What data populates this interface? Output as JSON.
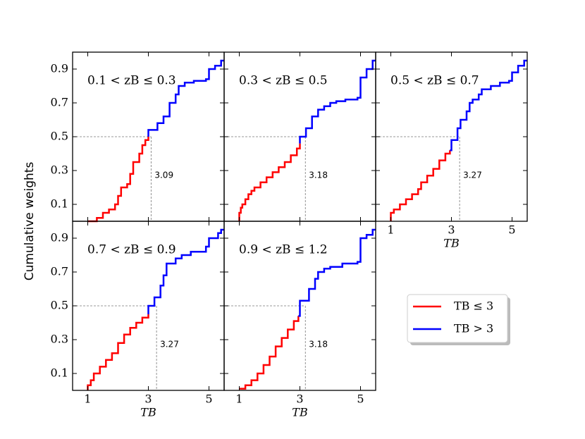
{
  "ylabel": "Cumulative weights",
  "chart_data": [
    {
      "type": "line",
      "title": "0.1 < zB ≤ 0.3",
      "xlim": [
        0.5,
        5.5
      ],
      "ylim": [
        0,
        1
      ],
      "xticks": [
        1,
        3,
        5
      ],
      "yticks": [
        0.1,
        0.3,
        0.5,
        0.7,
        0.9
      ],
      "hline": 0.5,
      "median": 3.09,
      "series": [
        {
          "name": "TB ≤ 3",
          "color": "#ff0000",
          "x": [
            1.0,
            1.3,
            1.5,
            1.7,
            1.9,
            2.0,
            2.1,
            2.3,
            2.4,
            2.5,
            2.7,
            2.8,
            2.9,
            3.0
          ],
          "values": [
            0.0,
            0.02,
            0.05,
            0.07,
            0.1,
            0.15,
            0.2,
            0.22,
            0.28,
            0.35,
            0.4,
            0.45,
            0.48,
            0.5
          ]
        },
        {
          "name": "TB > 3",
          "color": "#0000ff",
          "x": [
            3.0,
            3.0,
            3.3,
            3.5,
            3.7,
            3.9,
            4.0,
            4.2,
            4.5,
            4.9,
            5.0,
            5.2,
            5.4,
            5.5
          ],
          "values": [
            0.5,
            0.54,
            0.58,
            0.62,
            0.7,
            0.75,
            0.8,
            0.82,
            0.83,
            0.84,
            0.9,
            0.92,
            0.95,
            0.95
          ]
        }
      ]
    },
    {
      "type": "line",
      "title": "0.3 < zB ≤ 0.5",
      "xlim": [
        0.5,
        5.5
      ],
      "ylim": [
        0,
        1
      ],
      "xticks": [
        1,
        3,
        5
      ],
      "yticks": [
        0.1,
        0.3,
        0.5,
        0.7,
        0.9
      ],
      "hline": 0.5,
      "median": 3.18,
      "series": [
        {
          "name": "TB ≤ 3",
          "color": "#ff0000",
          "x": [
            1.0,
            1.0,
            1.05,
            1.1,
            1.2,
            1.3,
            1.4,
            1.5,
            1.7,
            1.9,
            2.1,
            2.3,
            2.5,
            2.7,
            2.9,
            3.0
          ],
          "values": [
            0.0,
            0.05,
            0.08,
            0.1,
            0.13,
            0.16,
            0.18,
            0.2,
            0.23,
            0.26,
            0.29,
            0.32,
            0.35,
            0.39,
            0.43,
            0.46
          ]
        },
        {
          "name": "TB > 3",
          "color": "#0000ff",
          "x": [
            3.0,
            3.0,
            3.2,
            3.4,
            3.6,
            3.8,
            4.0,
            4.2,
            4.5,
            4.9,
            5.0,
            5.2,
            5.4,
            5.5
          ],
          "values": [
            0.46,
            0.5,
            0.55,
            0.62,
            0.66,
            0.68,
            0.7,
            0.71,
            0.72,
            0.73,
            0.85,
            0.9,
            0.95,
            0.95
          ]
        }
      ]
    },
    {
      "type": "line",
      "title": "0.5 < zB ≤ 0.7",
      "xlabel": "TB",
      "xlim": [
        0.5,
        5.5
      ],
      "ylim": [
        0,
        1
      ],
      "xticks": [
        1,
        3,
        5
      ],
      "yticks": [
        0.1,
        0.3,
        0.5,
        0.7,
        0.9
      ],
      "hline": 0.5,
      "median": 3.27,
      "series": [
        {
          "name": "TB ≤ 3",
          "color": "#ff0000",
          "x": [
            1.0,
            1.0,
            1.1,
            1.3,
            1.5,
            1.7,
            1.9,
            2.0,
            2.2,
            2.4,
            2.6,
            2.8,
            2.95
          ],
          "values": [
            0.0,
            0.05,
            0.07,
            0.1,
            0.13,
            0.16,
            0.19,
            0.23,
            0.27,
            0.31,
            0.36,
            0.4,
            0.42
          ]
        },
        {
          "name": "TB > 3",
          "color": "#0000ff",
          "x": [
            2.95,
            3.0,
            3.2,
            3.3,
            3.5,
            3.6,
            3.7,
            3.9,
            4.0,
            4.3,
            4.6,
            4.9,
            5.0,
            5.2,
            5.4,
            5.5
          ],
          "values": [
            0.42,
            0.48,
            0.55,
            0.6,
            0.65,
            0.7,
            0.72,
            0.75,
            0.78,
            0.8,
            0.82,
            0.83,
            0.88,
            0.92,
            0.95,
            0.95
          ]
        }
      ]
    },
    {
      "type": "line",
      "title": "0.7 < zB ≤ 0.9",
      "xlabel": "TB",
      "xlim": [
        0.5,
        5.5
      ],
      "ylim": [
        0,
        1
      ],
      "xticks": [
        1,
        3,
        5
      ],
      "yticks": [
        0.1,
        0.3,
        0.5,
        0.7,
        0.9
      ],
      "hline": 0.5,
      "median": 3.27,
      "series": [
        {
          "name": "TB ≤ 3",
          "color": "#ff0000",
          "x": [
            1.0,
            1.0,
            1.1,
            1.2,
            1.4,
            1.6,
            1.8,
            2.0,
            2.2,
            2.4,
            2.6,
            2.8,
            3.0
          ],
          "values": [
            0.0,
            0.03,
            0.06,
            0.1,
            0.14,
            0.18,
            0.22,
            0.28,
            0.33,
            0.37,
            0.4,
            0.43,
            0.45
          ]
        },
        {
          "name": "TB > 3",
          "color": "#0000ff",
          "x": [
            3.0,
            3.0,
            3.2,
            3.4,
            3.5,
            3.6,
            3.9,
            4.1,
            4.4,
            4.9,
            5.0,
            5.3,
            5.4,
            5.5
          ],
          "values": [
            0.45,
            0.5,
            0.55,
            0.62,
            0.68,
            0.75,
            0.78,
            0.8,
            0.82,
            0.85,
            0.9,
            0.93,
            0.95,
            0.95
          ]
        }
      ]
    },
    {
      "type": "line",
      "title": "0.9 < zB ≤ 1.2",
      "xlabel": "TB",
      "xlim": [
        0.5,
        5.5
      ],
      "ylim": [
        0,
        1
      ],
      "xticks": [
        1,
        3,
        5
      ],
      "yticks": [
        0.1,
        0.3,
        0.5,
        0.7,
        0.9
      ],
      "hline": 0.5,
      "median": 3.18,
      "series": [
        {
          "name": "TB ≤ 3",
          "color": "#ff0000",
          "x": [
            1.0,
            1.2,
            1.4,
            1.6,
            1.8,
            2.0,
            2.2,
            2.4,
            2.6,
            2.8,
            2.95
          ],
          "values": [
            0.01,
            0.03,
            0.06,
            0.1,
            0.15,
            0.2,
            0.26,
            0.31,
            0.36,
            0.41,
            0.44
          ]
        },
        {
          "name": "TB > 3",
          "color": "#0000ff",
          "x": [
            2.95,
            3.0,
            3.0,
            3.3,
            3.5,
            3.6,
            3.8,
            4.0,
            4.4,
            4.9,
            5.0,
            5.2,
            5.4,
            5.5
          ],
          "values": [
            0.44,
            0.48,
            0.53,
            0.6,
            0.66,
            0.7,
            0.72,
            0.73,
            0.75,
            0.76,
            0.9,
            0.92,
            0.95,
            0.95
          ]
        }
      ]
    }
  ]
}
